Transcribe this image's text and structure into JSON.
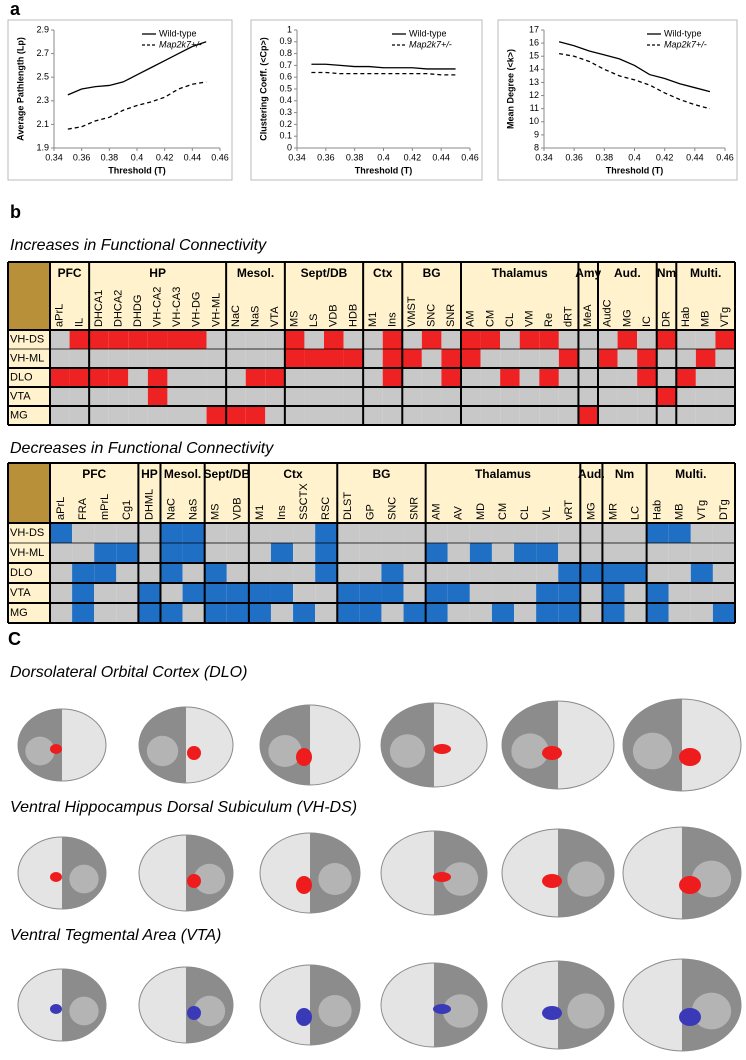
{
  "panel_a": {
    "label": "a"
  },
  "chart_data": [
    {
      "type": "line",
      "xlabel": "Threshold (T)",
      "ylabel": "Average Pathlength (Lp)",
      "x": [
        0.35,
        0.36,
        0.37,
        0.38,
        0.39,
        0.4,
        0.41,
        0.42,
        0.43,
        0.44,
        0.45
      ],
      "series": [
        {
          "name": "Wild-type",
          "color": "#000000",
          "style": "solid",
          "values": [
            2.35,
            2.4,
            2.42,
            2.43,
            2.46,
            2.52,
            2.58,
            2.64,
            2.7,
            2.76,
            2.8
          ]
        },
        {
          "name": "Map2k7+/-",
          "color": "#000000",
          "style": "dashed",
          "values": [
            2.06,
            2.08,
            2.13,
            2.16,
            2.22,
            2.26,
            2.29,
            2.33,
            2.4,
            2.44,
            2.46
          ]
        }
      ],
      "xlim": [
        0.34,
        0.46
      ],
      "xticks": [
        0.34,
        0.36,
        0.38,
        0.4,
        0.42,
        0.44,
        0.46
      ],
      "ylim": [
        1.9,
        2.9
      ],
      "yticks": [
        1.9,
        2.1,
        2.3,
        2.5,
        2.7,
        2.9
      ],
      "legend": "upper right"
    },
    {
      "type": "line",
      "xlabel": "Threshold (T)",
      "ylabel": "Clustering Coeff. (<Cp>)",
      "x": [
        0.35,
        0.36,
        0.37,
        0.38,
        0.39,
        0.4,
        0.41,
        0.42,
        0.43,
        0.44,
        0.45
      ],
      "series": [
        {
          "name": "Wild-type",
          "color": "#000000",
          "style": "solid",
          "values": [
            0.71,
            0.71,
            0.7,
            0.69,
            0.69,
            0.68,
            0.68,
            0.68,
            0.67,
            0.67,
            0.67
          ]
        },
        {
          "name": "Map2k7+/-",
          "color": "#000000",
          "style": "dashed",
          "values": [
            0.64,
            0.64,
            0.63,
            0.63,
            0.63,
            0.63,
            0.63,
            0.63,
            0.63,
            0.62,
            0.62
          ]
        }
      ],
      "xlim": [
        0.34,
        0.46
      ],
      "xticks": [
        0.34,
        0.36,
        0.38,
        0.4,
        0.42,
        0.44,
        0.46
      ],
      "ylim": [
        0,
        1
      ],
      "yticks": [
        0,
        0.1,
        0.2,
        0.3,
        0.4,
        0.5,
        0.6,
        0.7,
        0.8,
        0.9,
        1
      ],
      "legend": "upper right"
    },
    {
      "type": "line",
      "xlabel": "Threshold (T)",
      "ylabel": "Mean Degree (<k>)",
      "x": [
        0.35,
        0.36,
        0.37,
        0.38,
        0.39,
        0.4,
        0.41,
        0.42,
        0.43,
        0.44,
        0.45
      ],
      "series": [
        {
          "name": "Wild-type",
          "color": "#000000",
          "style": "solid",
          "values": [
            16.1,
            15.8,
            15.4,
            15.1,
            14.8,
            14.3,
            13.6,
            13.3,
            12.9,
            12.6,
            12.3
          ]
        },
        {
          "name": "Map2k7+/-",
          "color": "#000000",
          "style": "dashed",
          "values": [
            15.2,
            15.0,
            14.6,
            14.0,
            13.5,
            13.2,
            12.8,
            12.2,
            11.7,
            11.3,
            11.0
          ]
        }
      ],
      "xlim": [
        0.34,
        0.46
      ],
      "xticks": [
        0.34,
        0.36,
        0.38,
        0.4,
        0.42,
        0.44,
        0.46
      ],
      "ylim": [
        8,
        17
      ],
      "yticks": [
        8,
        9,
        10,
        11,
        12,
        13,
        14,
        15,
        16,
        17
      ],
      "legend": "upper right"
    }
  ],
  "panel_b": {
    "label": "b"
  },
  "increases": {
    "title": "Increases in Functional Connectivity",
    "color": "#ee2222",
    "empty_color": "#c8c8c8",
    "groups": [
      {
        "name": "PFC",
        "columns": [
          "aPrL",
          "IL"
        ]
      },
      {
        "name": "HP",
        "columns": [
          "DHCA1",
          "DHCA2",
          "DHDG",
          "VH-CA2",
          "VH-CA3",
          "VH-DG",
          "VH-ML"
        ]
      },
      {
        "name": "Mesol.",
        "columns": [
          "NaC",
          "NaS",
          "VTA"
        ]
      },
      {
        "name": "Sept/DB",
        "columns": [
          "MS",
          "LS",
          "VDB",
          "HDB"
        ]
      },
      {
        "name": "Ctx",
        "columns": [
          "M1",
          "Ins"
        ]
      },
      {
        "name": "BG",
        "columns": [
          "VMST",
          "SNC",
          "SNR"
        ]
      },
      {
        "name": "Thalamus",
        "columns": [
          "AM",
          "CM",
          "CL",
          "VM",
          "Re",
          "dRT"
        ]
      },
      {
        "name": "Amy",
        "columns": [
          "MeA"
        ]
      },
      {
        "name": "Aud.",
        "columns": [
          "AudC",
          "MG",
          "IC"
        ]
      },
      {
        "name": "Nm",
        "columns": [
          "DR"
        ]
      },
      {
        "name": "Multi.",
        "columns": [
          "Hab",
          "MB",
          "VTg"
        ]
      }
    ],
    "rows": [
      "VH-DS",
      "VH-ML",
      "DLO",
      "VTA",
      "MG"
    ],
    "cells": [
      [
        0,
        1,
        1,
        1,
        1,
        1,
        1,
        1,
        0,
        0,
        0,
        0,
        1,
        0,
        1,
        0,
        0,
        1,
        0,
        1,
        0,
        1,
        1,
        0,
        1,
        1,
        0,
        0,
        0,
        1,
        0,
        1,
        0,
        0,
        1
      ],
      [
        0,
        0,
        0,
        0,
        0,
        0,
        0,
        0,
        0,
        0,
        0,
        0,
        1,
        1,
        1,
        1,
        0,
        1,
        1,
        0,
        1,
        1,
        0,
        0,
        0,
        0,
        1,
        0,
        1,
        0,
        1,
        0,
        0,
        1,
        0
      ],
      [
        1,
        1,
        1,
        1,
        0,
        1,
        0,
        0,
        0,
        0,
        1,
        1,
        0,
        0,
        0,
        0,
        0,
        1,
        0,
        0,
        1,
        0,
        0,
        1,
        0,
        1,
        0,
        0,
        0,
        0,
        1,
        0,
        1,
        0,
        0
      ],
      [
        0,
        0,
        0,
        0,
        0,
        1,
        0,
        0,
        0,
        0,
        0,
        0,
        0,
        0,
        0,
        0,
        0,
        0,
        0,
        0,
        0,
        0,
        0,
        0,
        0,
        0,
        0,
        0,
        0,
        0,
        0,
        1,
        0,
        0,
        0
      ],
      [
        0,
        0,
        0,
        0,
        0,
        0,
        0,
        0,
        1,
        1,
        1,
        0,
        0,
        0,
        0,
        0,
        0,
        0,
        0,
        0,
        0,
        0,
        0,
        0,
        0,
        0,
        0,
        1,
        0,
        0,
        0,
        0,
        0,
        0,
        0
      ]
    ]
  },
  "decreases": {
    "title": "Decreases in Functional Connectivity",
    "color": "#1f6fc5",
    "empty_color": "#c8c8c8",
    "groups": [
      {
        "name": "PFC",
        "columns": [
          "aPrL",
          "FRA",
          "mPrL",
          "Cg1"
        ]
      },
      {
        "name": "HP",
        "columns": [
          "DHML"
        ]
      },
      {
        "name": "Mesol.",
        "columns": [
          "NaC",
          "NaS"
        ]
      },
      {
        "name": "Sept/DB",
        "columns": [
          "MS",
          "VDB"
        ]
      },
      {
        "name": "Ctx",
        "columns": [
          "M1",
          "Ins",
          "SSCTX",
          "RSC"
        ]
      },
      {
        "name": "BG",
        "columns": [
          "DLST",
          "GP",
          "SNC",
          "SNR"
        ]
      },
      {
        "name": "Thalamus",
        "columns": [
          "AM",
          "AV",
          "MD",
          "CM",
          "CL",
          "VL",
          "vRT"
        ]
      },
      {
        "name": "Aud.",
        "columns": [
          "MG"
        ]
      },
      {
        "name": "Nm",
        "columns": [
          "MR",
          "LC"
        ]
      },
      {
        "name": "Multi.",
        "columns": [
          "Hab",
          "MB",
          "VTg",
          "DTg"
        ]
      }
    ],
    "rows": [
      "VH-DS",
      "VH-ML",
      "DLO",
      "VTA",
      "MG"
    ],
    "cells": [
      [
        1,
        0,
        0,
        0,
        0,
        1,
        1,
        0,
        0,
        0,
        0,
        0,
        1,
        0,
        0,
        0,
        0,
        0,
        0,
        0,
        0,
        0,
        0,
        0,
        0,
        0,
        0,
        1,
        1,
        0,
        0
      ],
      [
        0,
        0,
        1,
        1,
        0,
        1,
        1,
        0,
        0,
        0,
        1,
        0,
        1,
        0,
        0,
        0,
        0,
        1,
        0,
        1,
        0,
        1,
        1,
        0,
        0,
        0,
        0,
        0,
        0,
        0,
        0
      ],
      [
        0,
        1,
        1,
        0,
        0,
        1,
        0,
        1,
        0,
        0,
        0,
        0,
        1,
        0,
        0,
        1,
        0,
        0,
        0,
        0,
        0,
        0,
        0,
        1,
        1,
        1,
        1,
        0,
        0,
        1,
        0
      ],
      [
        0,
        1,
        0,
        0,
        1,
        0,
        1,
        1,
        1,
        1,
        1,
        0,
        0,
        1,
        1,
        1,
        0,
        1,
        1,
        0,
        0,
        0,
        1,
        1,
        0,
        1,
        0,
        1,
        0,
        0,
        0
      ],
      [
        0,
        1,
        0,
        0,
        1,
        1,
        0,
        1,
        1,
        1,
        0,
        1,
        0,
        1,
        1,
        0,
        1,
        1,
        0,
        0,
        1,
        0,
        1,
        1,
        0,
        1,
        0,
        1,
        0,
        0,
        1
      ]
    ]
  },
  "panel_c": {
    "label": "C",
    "rows": [
      {
        "title": "Dorsolateral Orbital Cortex (DLO)"
      },
      {
        "title": "Ventral Hippocampus Dorsal Subiculum (VH-DS)"
      },
      {
        "title": "Ventral Tegmental Area (VTA)"
      }
    ]
  }
}
